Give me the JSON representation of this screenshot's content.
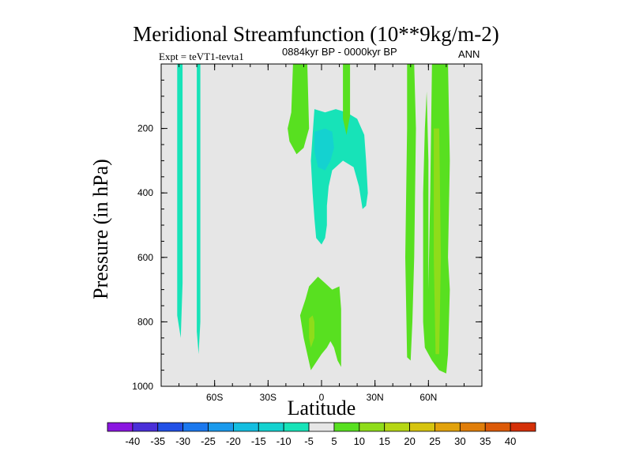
{
  "chart_data": {
    "type": "contour",
    "title": "Meridional Streamfunction (10**9kg/m-2)",
    "left_label": "Expt = teVT1-tevta1",
    "center_label": "0884kyr BP - 0000kyr BP",
    "right_label": "ANN",
    "xlabel": "Latitude",
    "ylabel": "Pressure (in hPa)",
    "xlim": [
      -90,
      90
    ],
    "ylim": [
      1000,
      0
    ],
    "x_ticks": [
      {
        "value": -60,
        "label": "60S"
      },
      {
        "value": -30,
        "label": "30S"
      },
      {
        "value": 0,
        "label": "0"
      },
      {
        "value": 30,
        "label": "30N"
      },
      {
        "value": 60,
        "label": "60N"
      }
    ],
    "y_ticks": [
      {
        "value": 200,
        "label": "200"
      },
      {
        "value": 400,
        "label": "400"
      },
      {
        "value": 600,
        "label": "600"
      },
      {
        "value": 800,
        "label": "800"
      },
      {
        "value": 1000,
        "label": "1000"
      }
    ],
    "background_color": "#e6e6e6",
    "colorbar": {
      "levels": [
        "-40",
        "-35",
        "-30",
        "-25",
        "-20",
        "-15",
        "-10",
        "-5",
        "5",
        "10",
        "15",
        "20",
        "25",
        "30",
        "35",
        "40"
      ],
      "colors": [
        "#8a16e0",
        "#4a2fd8",
        "#2150e6",
        "#1b78ee",
        "#1a9aec",
        "#14bee0",
        "#14d2d0",
        "#17e3b8",
        "#e6e6e6",
        "#58e020",
        "#8fdc1a",
        "#b5d614",
        "#d6c40f",
        "#e2a20c",
        "#e07e0a",
        "#dc5a08",
        "#d43008"
      ]
    },
    "regions": [
      {
        "level": "-10 to -5",
        "color": "#17e3b8",
        "polygon": [
          [
            -81,
            0
          ],
          [
            -78,
            0
          ],
          [
            -78,
            680
          ],
          [
            -79,
            850
          ],
          [
            -81,
            780
          ]
        ]
      },
      {
        "level": "-10 to -5",
        "color": "#17e3b8",
        "polygon": [
          [
            -70,
            0
          ],
          [
            -68,
            0
          ],
          [
            -68,
            800
          ],
          [
            -69,
            900
          ],
          [
            -70,
            830
          ]
        ]
      },
      {
        "level": "-10 to -5",
        "color": "#17e3b8",
        "polygon": [
          [
            -4,
            140
          ],
          [
            2,
            150
          ],
          [
            8,
            140
          ],
          [
            14,
            150
          ],
          [
            20,
            170
          ],
          [
            24,
            220
          ],
          [
            25,
            300
          ],
          [
            26,
            400
          ],
          [
            25,
            440
          ],
          [
            23,
            450
          ],
          [
            21,
            380
          ],
          [
            18,
            320
          ],
          [
            12,
            300
          ],
          [
            6,
            330
          ],
          [
            4,
            380
          ],
          [
            3,
            440
          ],
          [
            3,
            500
          ],
          [
            2,
            540
          ],
          [
            0,
            560
          ],
          [
            -3,
            540
          ],
          [
            -4,
            480
          ],
          [
            -5,
            400
          ],
          [
            -6,
            300
          ],
          [
            -5,
            220
          ]
        ]
      },
      {
        "level": "-15 to -10",
        "color": "#14d2d0",
        "polygon": [
          [
            -4,
            210
          ],
          [
            2,
            200
          ],
          [
            6,
            210
          ],
          [
            7,
            260
          ],
          [
            5,
            300
          ],
          [
            2,
            330
          ],
          [
            -2,
            320
          ],
          [
            -4,
            270
          ]
        ]
      },
      {
        "level": "5 to 10",
        "color": "#58e020",
        "polygon": [
          [
            -16,
            0
          ],
          [
            -8,
            0
          ],
          [
            -7,
            200
          ],
          [
            -10,
            260
          ],
          [
            -14,
            280
          ],
          [
            -18,
            240
          ],
          [
            -19,
            200
          ],
          [
            -17,
            150
          ]
        ]
      },
      {
        "level": "5 to 10",
        "color": "#58e020",
        "polygon": [
          [
            12,
            0
          ],
          [
            16,
            0
          ],
          [
            16,
            160
          ],
          [
            14,
            220
          ],
          [
            12,
            170
          ]
        ]
      },
      {
        "level": "5 to 10",
        "color": "#58e020",
        "polygon": [
          [
            -7,
            690
          ],
          [
            -2,
            660
          ],
          [
            2,
            680
          ],
          [
            6,
            700
          ],
          [
            10,
            690
          ],
          [
            11,
            760
          ],
          [
            11,
            940
          ],
          [
            9,
            920
          ],
          [
            7,
            880
          ],
          [
            5,
            860
          ],
          [
            3,
            880
          ],
          [
            0,
            900
          ],
          [
            -6,
            950
          ],
          [
            -10,
            850
          ],
          [
            -12,
            780
          ],
          [
            -9,
            730
          ]
        ]
      },
      {
        "level": "10 to 15",
        "color": "#8fdc1a",
        "polygon": [
          [
            -7,
            790
          ],
          [
            -5,
            780
          ],
          [
            -4,
            800
          ],
          [
            -4,
            850
          ],
          [
            -6,
            880
          ],
          [
            -7,
            850
          ]
        ]
      },
      {
        "level": "5 to 10",
        "color": "#58e020",
        "polygon": [
          [
            48,
            0
          ],
          [
            52,
            0
          ],
          [
            53,
            200
          ],
          [
            52,
            600
          ],
          [
            51,
            800
          ],
          [
            50,
            920
          ],
          [
            48,
            910
          ],
          [
            47,
            600
          ],
          [
            48,
            200
          ]
        ]
      },
      {
        "level": "5 to 10",
        "color": "#58e020",
        "polygon": [
          [
            66,
            0
          ],
          [
            71,
            0
          ],
          [
            72,
            300
          ],
          [
            71,
            600
          ],
          [
            72,
            700
          ],
          [
            71,
            900
          ],
          [
            70,
            960
          ],
          [
            66,
            950
          ],
          [
            62,
            920
          ],
          [
            58,
            880
          ],
          [
            57,
            800
          ],
          [
            57,
            600
          ],
          [
            57,
            400
          ],
          [
            58,
            200
          ],
          [
            59,
            85
          ],
          [
            60,
            300
          ],
          [
            60,
            600
          ],
          [
            60,
            700
          ],
          [
            61,
            400
          ],
          [
            62,
            0
          ]
        ]
      },
      {
        "level": "10 to 15",
        "color": "#8fdc1a",
        "polygon": [
          [
            63,
            200
          ],
          [
            66,
            200
          ],
          [
            67,
            600
          ],
          [
            66,
            900
          ],
          [
            64,
            900
          ],
          [
            63,
            600
          ]
        ]
      }
    ]
  }
}
